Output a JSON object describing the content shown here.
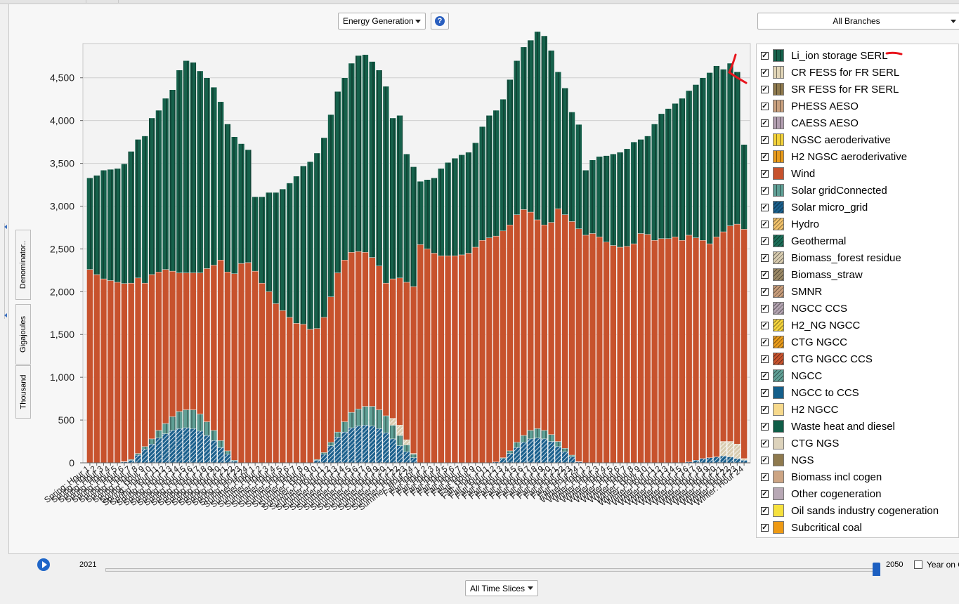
{
  "toolbar": {
    "view_select": "Energy Generation",
    "branch_select": "All Branches",
    "time_slice_select": "All Time Slices"
  },
  "side_buttons": {
    "denominator": "Denominator..",
    "units": "Gigajoules",
    "scale": "Thousand"
  },
  "timeline": {
    "start_year": "2021",
    "end_year": "2050",
    "year_on_label": "Year on C",
    "position": 1.0
  },
  "colors": {
    "li_ion": "#16614b",
    "wind": "#c7522d",
    "solar_grid": "#5f9f95",
    "solar_micro": "#1a5f8c",
    "biomass_forest": "#d8ccb0",
    "annotation": "#e8141c"
  },
  "legend": [
    {
      "label": "Li_ion storage SERL",
      "color": "#16614b",
      "pattern": "vlines",
      "checked": true
    },
    {
      "label": "CR FESS for FR SERL",
      "color": "#e2d6b8",
      "pattern": "vlines",
      "checked": true
    },
    {
      "label": "SR FESS for FR SERL",
      "color": "#8f7a4e",
      "pattern": "vlines",
      "checked": true
    },
    {
      "label": "PHESS  AESO",
      "color": "#c9a07e",
      "pattern": "vlines",
      "checked": true
    },
    {
      "label": "CAESS  AESO",
      "color": "#b29eb0",
      "pattern": "vlines",
      "checked": true
    },
    {
      "label": "NGSC aeroderivative",
      "color": "#f3d23a",
      "pattern": "vlines",
      "checked": true
    },
    {
      "label": "H2 NGSC aeroderivative",
      "color": "#e89a1a",
      "pattern": "vlines",
      "checked": true
    },
    {
      "label": "Wind",
      "color": "#c7522d",
      "pattern": "none",
      "checked": true
    },
    {
      "label": "Solar gridConnected",
      "color": "#5f9f95",
      "pattern": "vlines",
      "checked": true
    },
    {
      "label": "Solar micro_grid",
      "color": "#1a5f8c",
      "pattern": "diag",
      "checked": true
    },
    {
      "label": "Hydro",
      "color": "#f0c069",
      "pattern": "diag",
      "checked": true
    },
    {
      "label": "Geothermal",
      "color": "#1b6e58",
      "pattern": "diag",
      "checked": true
    },
    {
      "label": "Biomass_forest residue",
      "color": "#d8ccb0",
      "pattern": "diag",
      "checked": true
    },
    {
      "label": "Biomass_straw",
      "color": "#9a8865",
      "pattern": "diag",
      "checked": true
    },
    {
      "label": "SMNR",
      "color": "#c79c7a",
      "pattern": "diag",
      "checked": true
    },
    {
      "label": "NGCC CCS",
      "color": "#b2a3b0",
      "pattern": "diag",
      "checked": true
    },
    {
      "label": "H2_NG  NGCC",
      "color": "#f3d23a",
      "pattern": "diag",
      "checked": true
    },
    {
      "label": "CTG  NGCC",
      "color": "#e89a1a",
      "pattern": "diag",
      "checked": true
    },
    {
      "label": "CTG  NGCC CCS",
      "color": "#c7522d",
      "pattern": "diag",
      "checked": true
    },
    {
      "label": "NGCC",
      "color": "#5f9f95",
      "pattern": "diag",
      "checked": true
    },
    {
      "label": "NGCC to CCS",
      "color": "#145f8b",
      "pattern": "none",
      "checked": true
    },
    {
      "label": "H2  NGCC",
      "color": "#f6d98c",
      "pattern": "none",
      "checked": true
    },
    {
      "label": "Waste heat and diesel",
      "color": "#0f5d47",
      "pattern": "none",
      "checked": true
    },
    {
      "label": "CTG  NGS",
      "color": "#ddd3bc",
      "pattern": "none",
      "checked": true
    },
    {
      "label": "NGS",
      "color": "#8f7a4e",
      "pattern": "none",
      "checked": true
    },
    {
      "label": "Biomass incl cogen",
      "color": "#cda584",
      "pattern": "none",
      "checked": true
    },
    {
      "label": "Other cogeneration",
      "color": "#b8a8b5",
      "pattern": "none",
      "checked": true
    },
    {
      "label": "Oil sands industry cogeneration",
      "color": "#f6e13e",
      "pattern": "none",
      "checked": true
    },
    {
      "label": "Subcritical coal",
      "color": "#ee9a14",
      "pattern": "none",
      "checked": true
    }
  ],
  "chart_data": {
    "type": "bar",
    "stacked": true,
    "title": "",
    "xlabel": "",
    "ylabel": "Gigajoules (Thousand)",
    "ylim": [
      0,
      4900
    ],
    "yticks": [
      0,
      500,
      1000,
      1500,
      2000,
      2500,
      3000,
      3500,
      4000,
      4500
    ],
    "ytick_labels": [
      "0",
      "500",
      "1,000",
      "1,500",
      "2,000",
      "2,500",
      "3,000",
      "3,500",
      "4,000",
      "4,500"
    ],
    "grid": true,
    "legend_position": "right",
    "categories": [
      "Spring: Hour 1",
      "Spring: Hour 2",
      "Spring: Hour 3",
      "Spring: Hour 4",
      "Spring: Hour 5",
      "Spring: Hour 6",
      "Spring: Hour 7",
      "Spring: Hour 8",
      "Spring: Hour 9",
      "Spring: Hour 10",
      "Spring: Hour 11",
      "Spring: Hour 12",
      "Spring: Hour 13",
      "Spring: Hour 14",
      "Spring: Hour 15",
      "Spring: Hour 16",
      "Spring: Hour 17",
      "Spring: Hour 18",
      "Spring: Hour 19",
      "Spring: Hour 20",
      "Spring: Hour 21",
      "Spring: Hour 22",
      "Spring: Hour 23",
      "Spring: Hour 24",
      "Summer: Hour 1",
      "Summer: Hour 2",
      "Summer: Hour 3",
      "Summer: Hour 4",
      "Summer: Hour 5",
      "Summer: Hour 6",
      "Summer: Hour 7",
      "Summer: Hour 8",
      "Summer: Hour 9",
      "Summer: Hour 10",
      "Summer: Hour 11",
      "Summer: Hour 12",
      "Summer: Hour 13",
      "Summer: Hour 14",
      "Summer: Hour 15",
      "Summer: Hour 16",
      "Summer: Hour 17",
      "Summer: Hour 18",
      "Summer: Hour 19",
      "Summer: Hour 20",
      "Summer: Hour 21",
      "Summer: Hour 22",
      "Summer: Hour 23",
      "Summer: Hour 24",
      "Fall: Hour 1",
      "Fall: Hour 2",
      "Fall: Hour 3",
      "Fall: Hour 4",
      "Fall: Hour 5",
      "Fall: Hour 6",
      "Fall: Hour 7",
      "Fall: Hour 8",
      "Fall: Hour 9",
      "Fall: Hour 10",
      "Fall: Hour 11",
      "Fall: Hour 12",
      "Fall: Hour 13",
      "Fall: Hour 14",
      "Fall: Hour 15",
      "Fall: Hour 16",
      "Fall: Hour 17",
      "Fall: Hour 18",
      "Fall: Hour 19",
      "Fall: Hour 20",
      "Fall: Hour 21",
      "Fall: Hour 22",
      "Fall: Hour 23",
      "Fall: Hour 24",
      "Winter: Hour 1",
      "Winter: Hour 2",
      "Winter: Hour 3",
      "Winter: Hour 4",
      "Winter: Hour 5",
      "Winter: Hour 6",
      "Winter: Hour 7",
      "Winter: Hour 8",
      "Winter: Hour 9",
      "Winter: Hour 10",
      "Winter: Hour 11",
      "Winter: Hour 12",
      "Winter: Hour 13",
      "Winter: Hour 14",
      "Winter: Hour 15",
      "Winter: Hour 16",
      "Winter: Hour 17",
      "Winter: Hour 18",
      "Winter: Hour 19",
      "Winter: Hour 20",
      "Winter: Hour 21",
      "Winter: Hour 22",
      "Winter: Hour 23",
      "Winter: Hour 24"
    ],
    "series": [
      {
        "name": "Solar micro_grid",
        "color": "#1a5f8c",
        "pattern": "diag",
        "values": [
          0,
          0,
          0,
          0,
          0,
          10,
          30,
          90,
          160,
          220,
          290,
          340,
          380,
          400,
          410,
          400,
          370,
          320,
          260,
          180,
          100,
          20,
          0,
          0,
          0,
          0,
          0,
          0,
          0,
          0,
          0,
          0,
          0,
          30,
          100,
          200,
          300,
          360,
          410,
          430,
          440,
          430,
          400,
          350,
          280,
          200,
          130,
          60,
          0,
          0,
          0,
          0,
          0,
          0,
          0,
          0,
          0,
          0,
          0,
          10,
          50,
          110,
          180,
          240,
          280,
          290,
          280,
          250,
          190,
          130,
          70,
          10,
          0,
          0,
          0,
          0,
          0,
          0,
          0,
          0,
          0,
          0,
          0,
          0,
          0,
          0,
          0,
          10,
          30,
          50,
          60,
          70,
          80,
          70,
          50,
          30
        ]
      },
      {
        "name": "Solar gridConnected",
        "color": "#5f9f95",
        "pattern": "vlines",
        "values": [
          0,
          0,
          0,
          0,
          0,
          5,
          10,
          20,
          30,
          60,
          90,
          120,
          160,
          200,
          210,
          220,
          200,
          160,
          120,
          80,
          40,
          10,
          0,
          0,
          0,
          0,
          0,
          0,
          0,
          0,
          0,
          0,
          0,
          10,
          20,
          40,
          60,
          120,
          180,
          200,
          220,
          230,
          220,
          200,
          160,
          120,
          80,
          40,
          0,
          0,
          0,
          0,
          0,
          0,
          0,
          0,
          0,
          0,
          0,
          0,
          10,
          30,
          60,
          80,
          100,
          110,
          100,
          80,
          60,
          40,
          20,
          5,
          0,
          0,
          0,
          0,
          0,
          0,
          0,
          0,
          0,
          0,
          0,
          0,
          0,
          0,
          0,
          0,
          0,
          0,
          0,
          0,
          0,
          0,
          0,
          0
        ]
      },
      {
        "name": "Biomass_forest residue",
        "color": "#d8ccb0",
        "pattern": "diag",
        "values": [
          0,
          0,
          0,
          0,
          0,
          0,
          0,
          0,
          0,
          0,
          0,
          0,
          0,
          0,
          0,
          0,
          0,
          0,
          0,
          0,
          0,
          0,
          0,
          0,
          0,
          0,
          0,
          0,
          0,
          0,
          0,
          0,
          0,
          0,
          0,
          0,
          0,
          0,
          0,
          0,
          0,
          0,
          0,
          0,
          80,
          120,
          60,
          10,
          0,
          0,
          0,
          0,
          0,
          0,
          0,
          0,
          0,
          0,
          0,
          0,
          0,
          0,
          0,
          0,
          0,
          0,
          0,
          0,
          0,
          0,
          0,
          0,
          0,
          0,
          0,
          0,
          0,
          0,
          0,
          0,
          0,
          0,
          0,
          0,
          0,
          0,
          0,
          0,
          0,
          0,
          0,
          0,
          170,
          180,
          170,
          20
        ]
      },
      {
        "name": "Wind",
        "color": "#c7522d",
        "pattern": "none",
        "values": [
          2260,
          2200,
          2150,
          2130,
          2110,
          2080,
          2060,
          2050,
          1910,
          1920,
          1850,
          1800,
          1700,
          1620,
          1600,
          1600,
          1650,
          1790,
          1930,
          2110,
          2090,
          2180,
          2330,
          2340,
          2240,
          2100,
          2000,
          1860,
          1780,
          1700,
          1630,
          1620,
          1560,
          1530,
          1580,
          1700,
          1860,
          1890,
          1870,
          1840,
          1800,
          1740,
          1680,
          1550,
          1630,
          1720,
          1840,
          1950,
          2550,
          2500,
          2450,
          2420,
          2420,
          2420,
          2430,
          2450,
          2520,
          2600,
          2630,
          2640,
          2650,
          2640,
          2660,
          2640,
          2550,
          2440,
          2400,
          2480,
          2720,
          2730,
          2730,
          2720,
          2660,
          2680,
          2640,
          2580,
          2540,
          2520,
          2530,
          2560,
          2680,
          2670,
          2600,
          2620,
          2620,
          2640,
          2600,
          2650,
          2600,
          2550,
          2500,
          2570,
          2450,
          2520,
          2570,
          2680
        ]
      },
      {
        "name": "Li_ion storage SERL",
        "color": "#16614b",
        "pattern": "vlines",
        "values": [
          1070,
          1160,
          1270,
          1300,
          1330,
          1400,
          1540,
          1620,
          1720,
          1830,
          1890,
          2000,
          2120,
          2370,
          2480,
          2460,
          2360,
          2230,
          2080,
          1850,
          1730,
          1600,
          1400,
          1320,
          870,
          1010,
          1160,
          1300,
          1420,
          1570,
          1720,
          1850,
          1960,
          2050,
          2100,
          2130,
          2120,
          2130,
          2210,
          2290,
          2310,
          2290,
          2290,
          2300,
          1880,
          1900,
          1500,
          1400,
          740,
          810,
          880,
          1020,
          1090,
          1140,
          1170,
          1180,
          1220,
          1330,
          1430,
          1470,
          1540,
          1700,
          1800,
          1900,
          2010,
          2200,
          2210,
          2010,
          1600,
          1480,
          1280,
          1220,
          760,
          860,
          940,
          1010,
          1070,
          1110,
          1140,
          1190,
          1100,
          1150,
          1360,
          1460,
          1520,
          1560,
          1660,
          1690,
          1790,
          1900,
          2000,
          2000,
          1900,
          1900,
          1780,
          990
        ]
      }
    ]
  }
}
